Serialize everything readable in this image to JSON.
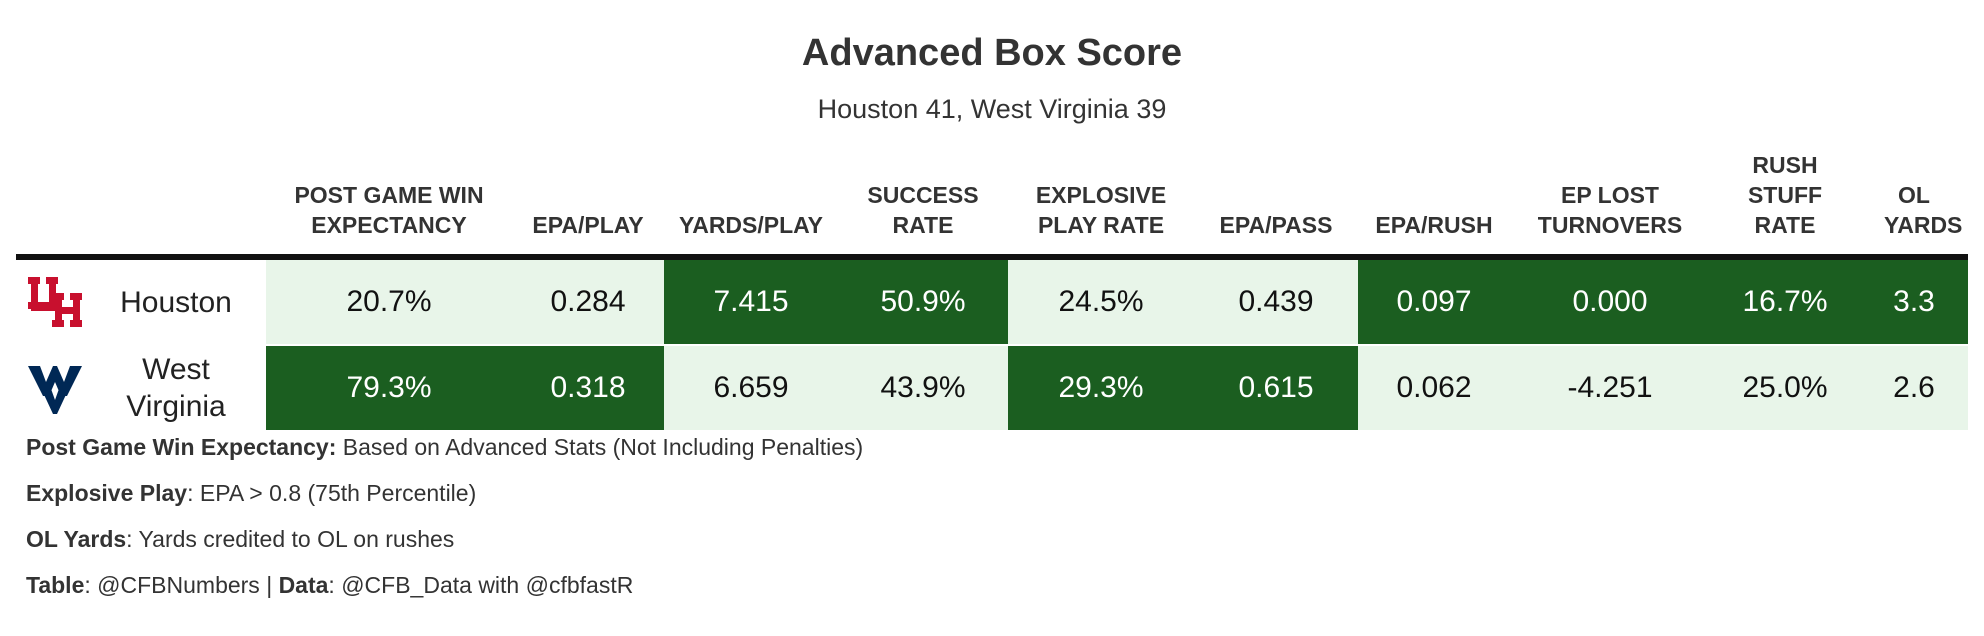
{
  "title": "Advanced Box Score",
  "subtitle": "Houston 41, West Virginia 39",
  "chart_data": {
    "type": "table",
    "columns": [
      {
        "key": "team",
        "label": ""
      },
      {
        "key": "wp",
        "label": "POST GAME WIN EXPECTANCY"
      },
      {
        "key": "epa_play",
        "label": "EPA/PLAY"
      },
      {
        "key": "yards_play",
        "label": "YARDS/PLAY"
      },
      {
        "key": "success",
        "label": "SUCCESS RATE"
      },
      {
        "key": "explosive",
        "label": "EXPLOSIVE PLAY RATE"
      },
      {
        "key": "epa_pass",
        "label": "EPA/PASS"
      },
      {
        "key": "epa_rush",
        "label": "EPA/RUSH"
      },
      {
        "key": "ep_lost",
        "label": "EP LOST TURNOVERS"
      },
      {
        "key": "stuff",
        "label": "RUSH STUFF RATE"
      },
      {
        "key": "ol_yards",
        "label": "OL YARDS"
      }
    ],
    "rows": [
      {
        "team": "Houston",
        "logo_icon": "houston-uh-logo-icon",
        "logo_color": "#c8102e",
        "cells": [
          {
            "text": "20.7%",
            "shade": "light"
          },
          {
            "text": "0.284",
            "shade": "light"
          },
          {
            "text": "7.415",
            "shade": "dark"
          },
          {
            "text": "50.9%",
            "shade": "dark"
          },
          {
            "text": "24.5%",
            "shade": "light"
          },
          {
            "text": "0.439",
            "shade": "light"
          },
          {
            "text": "0.097",
            "shade": "dark"
          },
          {
            "text": "0.000",
            "shade": "dark"
          },
          {
            "text": "16.7%",
            "shade": "dark"
          },
          {
            "text": "3.3",
            "shade": "dark"
          }
        ]
      },
      {
        "team": "West Virginia",
        "logo_icon": "west-virginia-wv-logo-icon",
        "logo_color": "#002855",
        "cells": [
          {
            "text": "79.3%",
            "shade": "dark"
          },
          {
            "text": "0.318",
            "shade": "dark"
          },
          {
            "text": "6.659",
            "shade": "light"
          },
          {
            "text": "43.9%",
            "shade": "light"
          },
          {
            "text": "29.3%",
            "shade": "dark"
          },
          {
            "text": "0.615",
            "shade": "dark"
          },
          {
            "text": "0.062",
            "shade": "light"
          },
          {
            "text": "-4.251",
            "shade": "light"
          },
          {
            "text": "25.0%",
            "shade": "light"
          },
          {
            "text": "2.6",
            "shade": "light"
          }
        ]
      }
    ],
    "colors": {
      "dark": "#1b5e20",
      "light": "#e8f5e9"
    }
  },
  "notes": [
    {
      "bold": "Post Game Win Expectancy:",
      "text": " Based on Advanced Stats (Not Including Penalties)"
    },
    {
      "bold": "Explosive Play",
      "text": ": EPA > 0.8 (75th Percentile)"
    },
    {
      "bold": "OL Yards",
      "text": ": Yards credited to OL on rushes"
    },
    {
      "bold": "Table",
      "text": ": @CFBNumbers | ",
      "bold2": "Data",
      "text2": ": @CFB_Data with @cfbfastR"
    }
  ]
}
